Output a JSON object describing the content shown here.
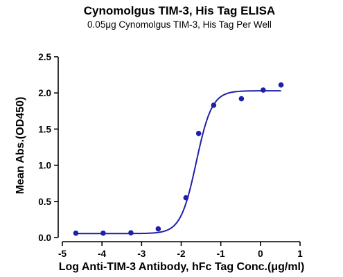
{
  "chart_data": {
    "type": "scatter",
    "title": "Cynomolgus TIM-3, His Tag ELISA",
    "subtitle": "0.05μg Cynomolgus TIM-3, His Tag Per Well",
    "xlabel": "Log Anti-TIM-3 Antibody, hFc Tag Conc.(μg/ml)",
    "ylabel": "Mean Abs.(OD450)",
    "xlim": [
      -5,
      1
    ],
    "ylim": [
      0,
      2.5
    ],
    "xticks": [
      "-5",
      "-4",
      "-3",
      "-2",
      "-1",
      "0",
      "1"
    ],
    "yticks": [
      "0.0",
      "0.5",
      "1.0",
      "1.5",
      "2.0",
      "2.5"
    ],
    "grid": false,
    "point_color": "#1f1fa8",
    "curve_color": "#1f1fa8",
    "series": [
      {
        "x": [
          -4.66,
          -3.97,
          -3.27,
          -2.58,
          -1.88,
          -1.56,
          -1.18,
          -0.48,
          0.07,
          0.52
        ],
        "y": [
          0.06,
          0.06,
          0.065,
          0.12,
          0.55,
          1.44,
          1.83,
          1.92,
          2.04,
          2.11
        ]
      }
    ],
    "fit": {
      "model": "4PL",
      "bottom": 0.055,
      "top": 2.03,
      "logEC50": -1.62,
      "hill": 2.2,
      "x_range": [
        -4.66,
        0.52
      ]
    }
  }
}
